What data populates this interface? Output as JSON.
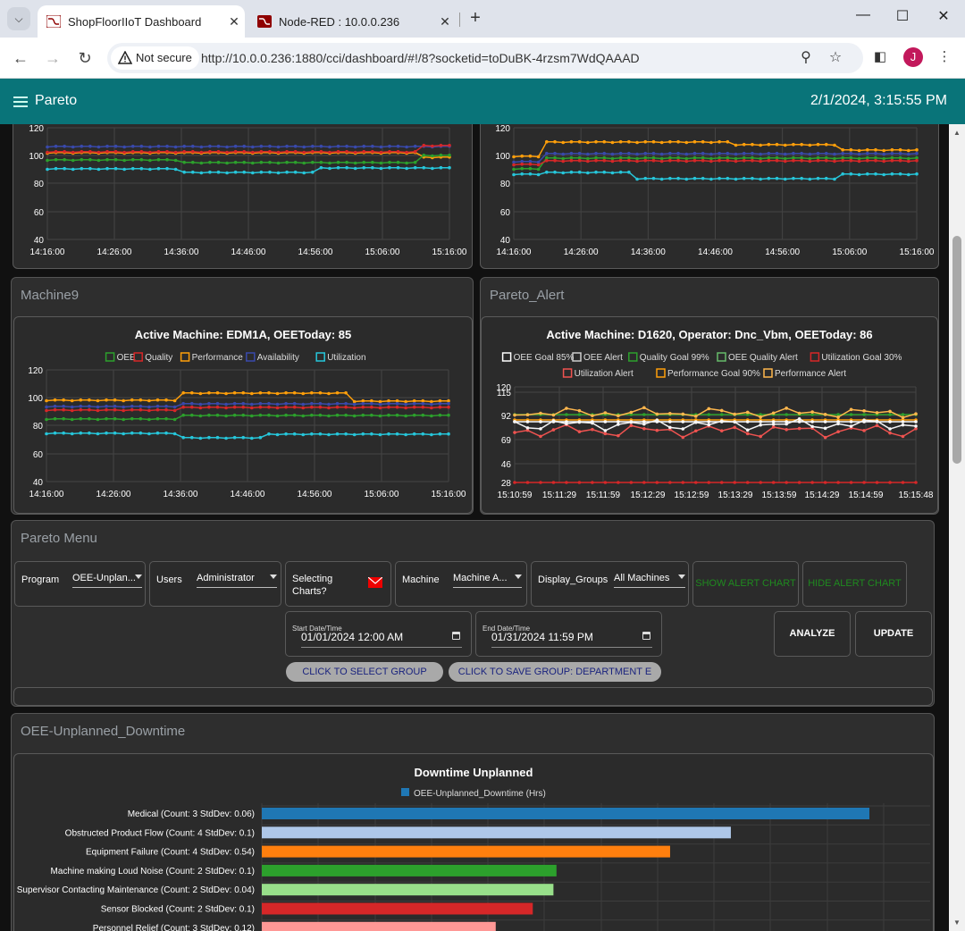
{
  "browser": {
    "tabs": [
      {
        "title": "ShopFloorIIoT Dashboard",
        "active": true
      },
      {
        "title": "Node-RED : 10.0.0.236",
        "active": false
      }
    ],
    "security_label": "Not secure",
    "url": "http://10.0.0.236:1880/cci/dashboard/#!/8?socketid=toDuBK-4rzsm7WdQAAAD",
    "profile_initial": "J"
  },
  "app": {
    "title": "Pareto",
    "datetime": "2/1/2024, 3:15:55 PM"
  },
  "top_charts": {
    "left": {
      "y_ticks": [
        "120",
        "100",
        "80",
        "60",
        "40"
      ],
      "x_ticks": [
        "14:16:00",
        "14:26:00",
        "14:36:00",
        "14:46:00",
        "14:56:00",
        "15:06:00",
        "15:16:00"
      ]
    },
    "right": {
      "y_ticks": [
        "120",
        "100",
        "80",
        "60",
        "40"
      ],
      "x_ticks": [
        "14:16:00",
        "14:26:00",
        "14:36:00",
        "14:46:00",
        "14:56:00",
        "15:06:00",
        "15:16:00"
      ]
    }
  },
  "machine9": {
    "group_title": "Machine9",
    "chart_title": "Active Machine: EDM1A, OEEToday: 85",
    "legend": [
      {
        "label": "OEE",
        "color": "#2ca02c"
      },
      {
        "label": "Quality",
        "color": "#d62728"
      },
      {
        "label": "Performance",
        "color": "#ff9f0a"
      },
      {
        "label": "Availability",
        "color": "#3949ab"
      },
      {
        "label": "Utilization",
        "color": "#26c6da"
      }
    ],
    "y_ticks": [
      "120",
      "100",
      "80",
      "60",
      "40"
    ],
    "x_ticks": [
      "14:16:00",
      "14:26:00",
      "14:36:00",
      "14:46:00",
      "14:56:00",
      "15:06:00",
      "15:16:00"
    ]
  },
  "pareto_alert": {
    "group_title": "Pareto_Alert",
    "chart_title": "Active Machine: D1620, Operator: Dnc_Vbm, OEEToday: 86",
    "legend_row1": [
      {
        "label": "OEE Goal 85%",
        "color": "#ffffff"
      },
      {
        "label": "OEE Alert",
        "color": "#cccccc"
      },
      {
        "label": "Quality Goal 99%",
        "color": "#2ca02c"
      },
      {
        "label": "OEE Quality Alert",
        "color": "#66bb6a"
      },
      {
        "label": "Utilization Goal 30%",
        "color": "#d62728"
      }
    ],
    "legend_row2": [
      {
        "label": "Utilization Alert",
        "color": "#ef5350"
      },
      {
        "label": "Performance Goal 90%",
        "color": "#ff9f0a"
      },
      {
        "label": "Performance Alert",
        "color": "#ffb74d"
      }
    ],
    "y_ticks": [
      "120",
      "115",
      "92",
      "69",
      "46",
      "28"
    ],
    "x_ticks": [
      "15:10:59",
      "15:11:29",
      "15:11:59",
      "15:12:29",
      "15:12:59",
      "15:13:29",
      "15:13:59",
      "15:14:29",
      "15:14:59",
      "15:15:48"
    ]
  },
  "pareto_menu": {
    "group_title": "Pareto Menu",
    "program_label": "Program",
    "program_value": "OEE-Unplan...",
    "users_label": "Users",
    "users_value": "Administrator",
    "selecting_label": "Selecting Charts?",
    "machine_label": "Machine",
    "machine_value": "Machine A...",
    "display_groups_label": "Display_Groups",
    "display_groups_value": "All Machines",
    "show_alert": "SHOW ALERT CHART",
    "hide_alert": "HIDE ALERT CHART",
    "start_label": "Start Date/Time",
    "start_value": "01/01/2024  12:00  AM",
    "end_label": "End Date/Time",
    "end_value": "01/31/2024  11:59  PM",
    "analyze": "ANALYZE",
    "update": "UPDATE",
    "select_group": "CLICK TO SELECT GROUP",
    "save_group": "CLICK TO SAVE GROUP: DEPARTMENT E"
  },
  "downtime": {
    "group_title": "OEE-Unplanned_Downtime",
    "chart_data": {
      "type": "bar",
      "title": "Downtime Unplanned",
      "series_name": "OEE-Unplanned_Downtime (Hrs)",
      "categories": [
        "Medical (Count: 3 StdDev: 0.06)",
        "Obstructed Product Flow (Count: 4 StdDev: 0.1)",
        "Equipment Failure (Count: 4 StdDev: 0.54)",
        "Machine making Loud Noise (Count: 2 StdDev: 0.1)",
        "Supervisor Contacting Maintenance (Count: 2 StdDev: 0.04)",
        "Sensor Blocked (Count: 2 StdDev: 0.1)",
        "Personnel Relief (Count: 3 StdDev: 0.12)"
      ],
      "values": [
        100,
        77.2,
        67.2,
        48.5,
        48,
        44.6,
        38.5
      ],
      "colors": [
        "#1f77b4",
        "#aec7e8",
        "#ff7f0e",
        "#2ca02c",
        "#98df8a",
        "#d62728",
        "#ff9896"
      ]
    }
  }
}
